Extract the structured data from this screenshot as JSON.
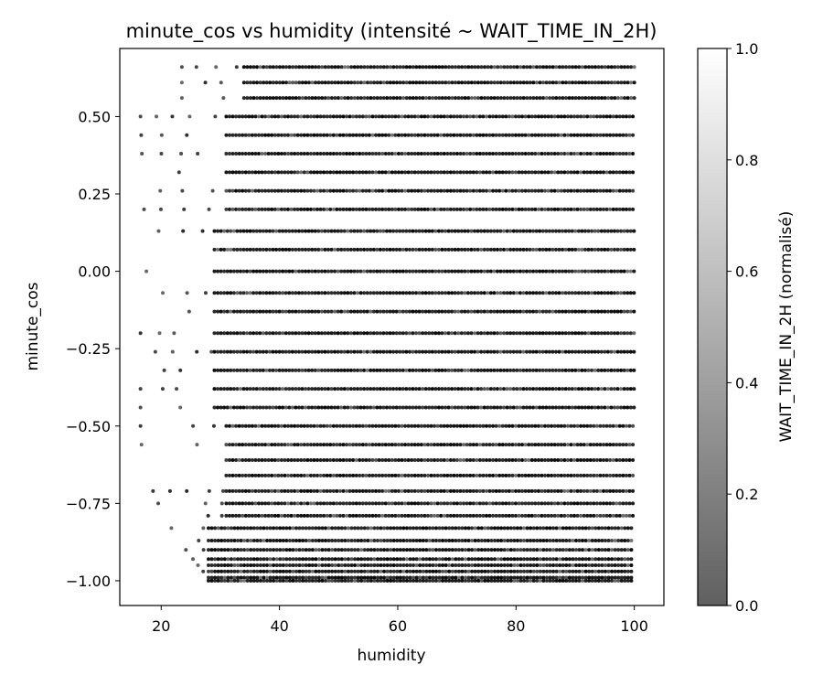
{
  "chart_data": {
    "type": "scatter",
    "title": "minute_cos vs humidity (intensité ~ WAIT_TIME_IN_2H)",
    "xlabel": "humidity",
    "ylabel": "minute_cos",
    "xlim": [
      13,
      105
    ],
    "ylim": [
      -1.08,
      0.72
    ],
    "x_ticks": [
      20,
      40,
      60,
      80,
      100
    ],
    "x_tick_labels": [
      "20",
      "40",
      "60",
      "80",
      "100"
    ],
    "y_ticks": [
      0.5,
      0.25,
      0.0,
      -0.25,
      -0.5,
      -0.75,
      -1.0
    ],
    "y_tick_labels": [
      "0.50",
      "0.25",
      "0.00",
      "−0.25",
      "−0.50",
      "−0.75",
      "−1.00"
    ],
    "grid": false,
    "marker_color_scale": "gray, dark = low, white = high",
    "points_description_levels": [
      0.66,
      0.61,
      0.56,
      0.5,
      0.44,
      0.38,
      0.32,
      0.26,
      0.2,
      0.13,
      0.07,
      0.0,
      -0.07,
      -0.13,
      -0.2,
      -0.26,
      -0.32,
      -0.38,
      -0.44,
      -0.5,
      -0.56,
      -0.61,
      -0.66,
      -0.71,
      -0.75,
      -0.79,
      -0.83,
      -0.87,
      -0.9,
      -0.93,
      -0.95,
      -0.97,
      -0.99,
      -1.0
    ],
    "humidity_max": 100,
    "colorbar": {
      "label": "WAIT_TIME_IN_2H (normalisé)",
      "range": [
        0.0,
        1.0
      ],
      "ticks": [
        0.0,
        0.2,
        0.4,
        0.6,
        0.8,
        1.0
      ],
      "tick_labels": [
        "0.0",
        "0.2",
        "0.4",
        "0.6",
        "0.8",
        "1.0"
      ],
      "colors": [
        "#606060",
        "#ffffff"
      ]
    }
  }
}
